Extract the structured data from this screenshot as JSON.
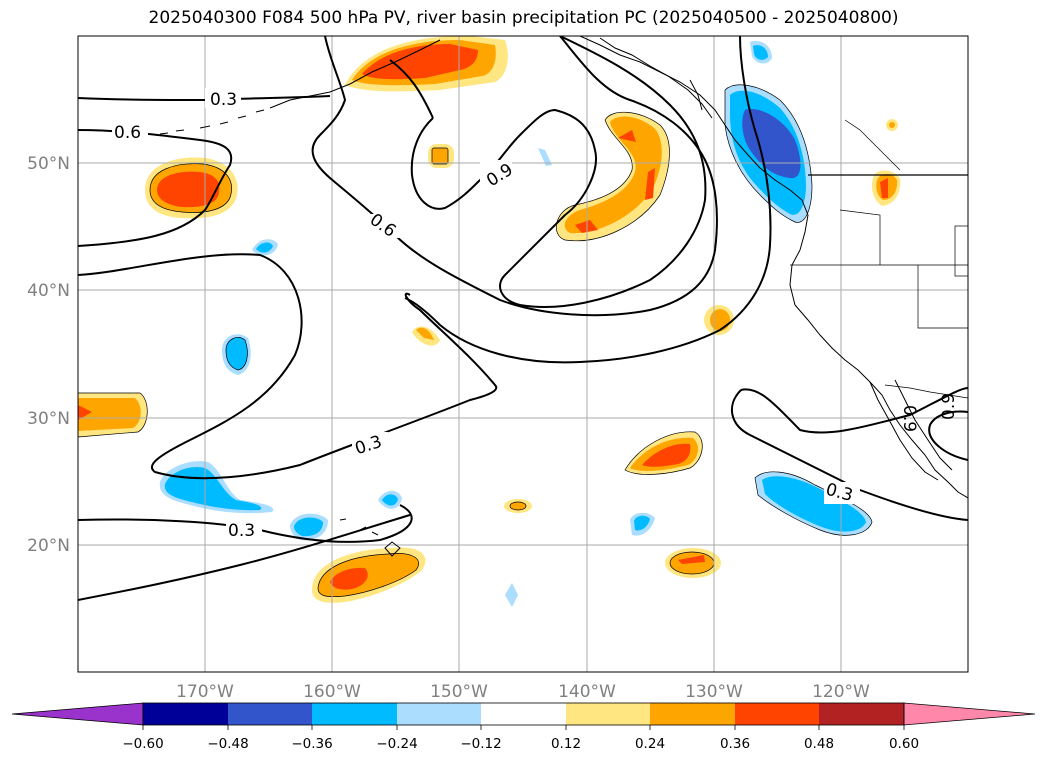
{
  "title": "2025040300 F084 500 hPa PV, river basin precipitation PC (2025040500 - 2025040800)",
  "lat_labels": [
    "50°N",
    "40°N",
    "30°N",
    "20°N"
  ],
  "lon_labels": [
    "170°W",
    "160°W",
    "150°W",
    "140°W",
    "130°W",
    "120°W"
  ],
  "contour_labels": [
    "0.3",
    "0.6",
    "0.9",
    "0.6",
    "0.3",
    "0.3",
    "0.3",
    "0.9",
    "0.9"
  ],
  "colorbar": {
    "ticks": [
      "−0.60",
      "−0.48",
      "−0.36",
      "−0.24",
      "−0.12",
      "0.12",
      "0.24",
      "0.36",
      "0.48",
      "0.60"
    ],
    "colors": {
      "under": "#9933cc",
      "bins": [
        "#000099",
        "#3355cc",
        "#00bbff",
        "#aaddff",
        "#ffffff",
        "#ffe680",
        "#ffa500",
        "#ff4400",
        "#b22222"
      ],
      "over": "#ff88aa"
    }
  }
}
